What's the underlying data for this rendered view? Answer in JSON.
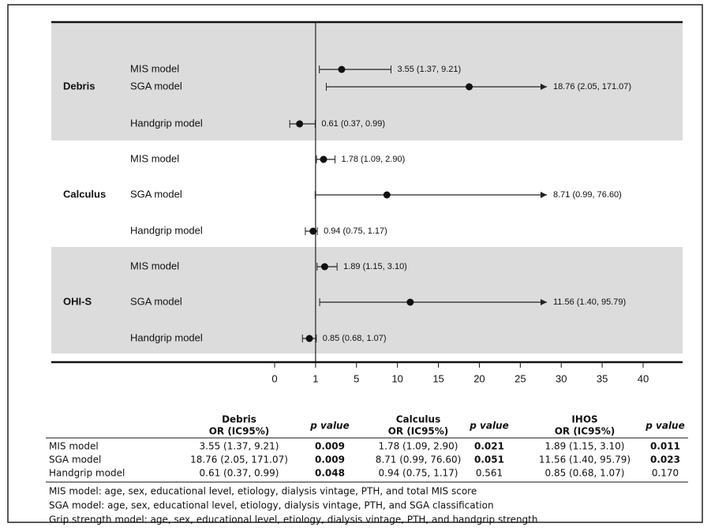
{
  "chart_data": {
    "type": "forest",
    "xticks": [
      0,
      1,
      5,
      10,
      15,
      20,
      25,
      30,
      35,
      40
    ],
    "xlim": [
      0,
      40
    ],
    "band_color": "#dcdcdc",
    "groups": [
      {
        "name": "Debris",
        "shaded": true,
        "rows": [
          {
            "model": "MIS model",
            "or": 3.55,
            "lo": 1.37,
            "hi": 9.21,
            "label": "3.55 (1.37, 9.21)"
          },
          {
            "model": "SGA model",
            "or": 18.76,
            "lo": 2.05,
            "hi": 171.07,
            "label": "18.76 (2.05, 171.07)"
          },
          {
            "model": "Handgrip model",
            "or": 0.61,
            "lo": 0.37,
            "hi": 0.99,
            "label": "0.61 (0.37, 0.99)"
          }
        ]
      },
      {
        "name": "Calculus",
        "shaded": false,
        "rows": [
          {
            "model": "MIS model",
            "or": 1.78,
            "lo": 1.09,
            "hi": 2.9,
            "label": "1.78 (1.09, 2.90)"
          },
          {
            "model": "SGA model",
            "or": 8.71,
            "lo": 0.99,
            "hi": 76.6,
            "label": "8.71 (0.99, 76.60)"
          },
          {
            "model": "Handgrip model",
            "or": 0.94,
            "lo": 0.75,
            "hi": 1.17,
            "label": "0.94 (0.75, 1.17)"
          }
        ]
      },
      {
        "name": "OHI-S",
        "shaded": true,
        "rows": [
          {
            "model": "MIS model",
            "or": 1.89,
            "lo": 1.15,
            "hi": 3.1,
            "label": "1.89 (1.15, 3.10)"
          },
          {
            "model": "SGA model",
            "or": 11.56,
            "lo": 1.4,
            "hi": 95.79,
            "label": "11.56 (1.40, 95.79)"
          },
          {
            "model": "Handgrip model",
            "or": 0.85,
            "lo": 0.68,
            "hi": 1.07,
            "label": "0.85 (0.68, 1.07)"
          }
        ]
      }
    ]
  },
  "table": {
    "header": [
      [
        "",
        ""
      ],
      [
        "Debris",
        "OR (IC95%)"
      ],
      [
        "p value",
        ""
      ],
      [
        "Calculus",
        "OR (IC95%)"
      ],
      [
        "p value",
        ""
      ],
      [
        "IHOS",
        "OR (IC95%)"
      ],
      [
        "p value",
        ""
      ]
    ],
    "rows": [
      [
        "MIS model",
        "3.55 (1.37, 9.21)",
        "0.009",
        "1.78 (1.09, 2.90)",
        "0.021",
        "1.89 (1.15, 3.10)",
        "0.011"
      ],
      [
        "SGA model",
        "18.76 (2.05, 171.07)",
        "0.009",
        "8.71 (0.99, 76.60)",
        "0.051",
        "11.56 (1.40, 95.79)",
        "0.023"
      ],
      [
        "Handgrip model",
        "0.61 (0.37, 0.99)",
        "0.048",
        "0.94 (0.75, 1.17)",
        "0.561",
        "0.85 (0.68, 1.07)",
        "0.170"
      ]
    ],
    "bold": [
      [
        false,
        false,
        true,
        false,
        true,
        false,
        true
      ],
      [
        false,
        false,
        true,
        false,
        true,
        false,
        true
      ],
      [
        false,
        false,
        true,
        false,
        false,
        false,
        false
      ]
    ]
  },
  "notes": [
    "MIS model: age, sex, educational level, etiology, dialysis vintage, PTH, and total MIS score",
    "SGA model: age, sex, educational level, etiology, dialysis vintage, PTH, and SGA classification",
    "Grip strength model: age, sex, educational level, etiology, dialysis vintage, PTH, and handgrip strength"
  ]
}
